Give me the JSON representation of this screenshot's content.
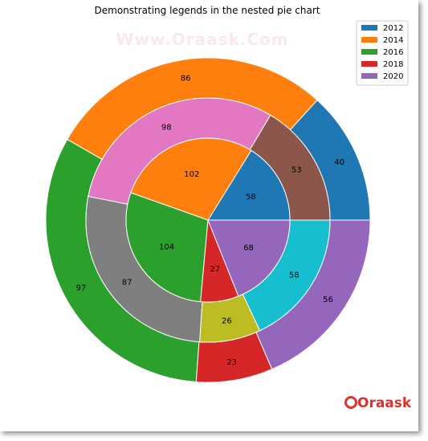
{
  "chart_data": {
    "type": "pie",
    "title": "Demonstrating legends in the nested pie chart",
    "legend": {
      "placement": "top-right",
      "entries": [
        "2012",
        "2014",
        "2016",
        "2018",
        "2020"
      ],
      "colors": [
        "#1f77b4",
        "#ff7f0e",
        "#2ca02c",
        "#d62728",
        "#9467bd"
      ]
    },
    "rings": [
      {
        "name": "outer",
        "values": [
          40,
          86,
          97,
          23,
          56
        ],
        "labels": [
          "40",
          "86",
          "97",
          "23",
          "56"
        ],
        "colors": [
          "#1f77b4",
          "#ff7f0e",
          "#2ca02c",
          "#d62728",
          "#9467bd"
        ]
      },
      {
        "name": "middle",
        "values": [
          53,
          98,
          87,
          26,
          58
        ],
        "labels": [
          "53",
          "98",
          "87",
          "26",
          "58"
        ],
        "colors": [
          "#8c564b",
          "#e377c2",
          "#7f7f7f",
          "#bcbd22",
          "#17becf"
        ]
      },
      {
        "name": "inner",
        "values": [
          58,
          102,
          104,
          27,
          68
        ],
        "labels": [
          "58",
          "102",
          "104",
          "27",
          "68"
        ],
        "colors": [
          "#1f77b4",
          "#ff7f0e",
          "#2ca02c",
          "#d62728",
          "#9467bd"
        ]
      }
    ]
  },
  "watermark": {
    "text": "Www.Oraask.Com"
  },
  "logo": {
    "text": "Oraask",
    "color": "#d8342c"
  }
}
